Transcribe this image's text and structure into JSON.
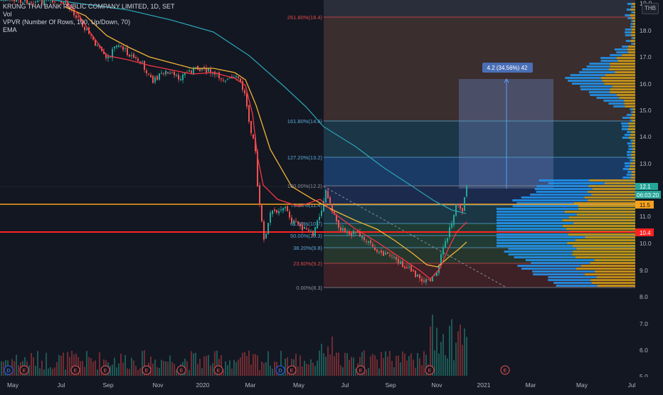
{
  "legend": {
    "symbol": "KRUNG THAI BANK PUBLIC COMPANY LIMITED, 1D, SET",
    "vol": "Vol",
    "vpvr": "VPVR (Number Of Rows, 100, Up/Down, 70)",
    "ema": "EMA"
  },
  "currency_button": "THB",
  "price_axis": {
    "ticks": [
      "18.0",
      "17.0",
      "16.0",
      "15.0",
      "14.0",
      "13.0",
      "11.0",
      "10.0",
      "9.0",
      "8.0",
      "7.0",
      "6.0",
      "5.0"
    ],
    "top_partial": "19.0",
    "labels": {
      "last_price": "12.1",
      "countdown": "06:03:20",
      "level_orange": "11.5",
      "level_red": "10.4"
    }
  },
  "time_axis": [
    "May",
    "Jul",
    "Sep",
    "Nov",
    "2020",
    "Mar",
    "May",
    "Jul",
    "Sep",
    "Nov",
    "2021",
    "Mar",
    "May",
    "Jul"
  ],
  "fib_labels": [
    "261.80%(18.4)",
    "161.80%(14.6)",
    "127.20%(13.2)",
    "100.00%(12.2)",
    "78.60%(11.4)",
    "61.80%(10.7)",
    "50.00%(10.3)",
    "38.20%(9.8)",
    "23.60%(9.2)",
    "0.00%(8.3)"
  ],
  "measure_label": "4.2 (34.56%) 42",
  "event_markers": [
    "D",
    "E",
    "E",
    "E",
    "E",
    "E",
    "E",
    "D",
    "E",
    "E",
    "E",
    "E"
  ],
  "colors": {
    "background": "#131722",
    "up": "#26a69a",
    "down": "#ef5350",
    "ema_fast": "#f23645",
    "ema_mid": "#f0b435",
    "ema_slow": "#2a9fb0",
    "level_red": "#ff2222",
    "level_orange": "#f7a21b"
  }
}
